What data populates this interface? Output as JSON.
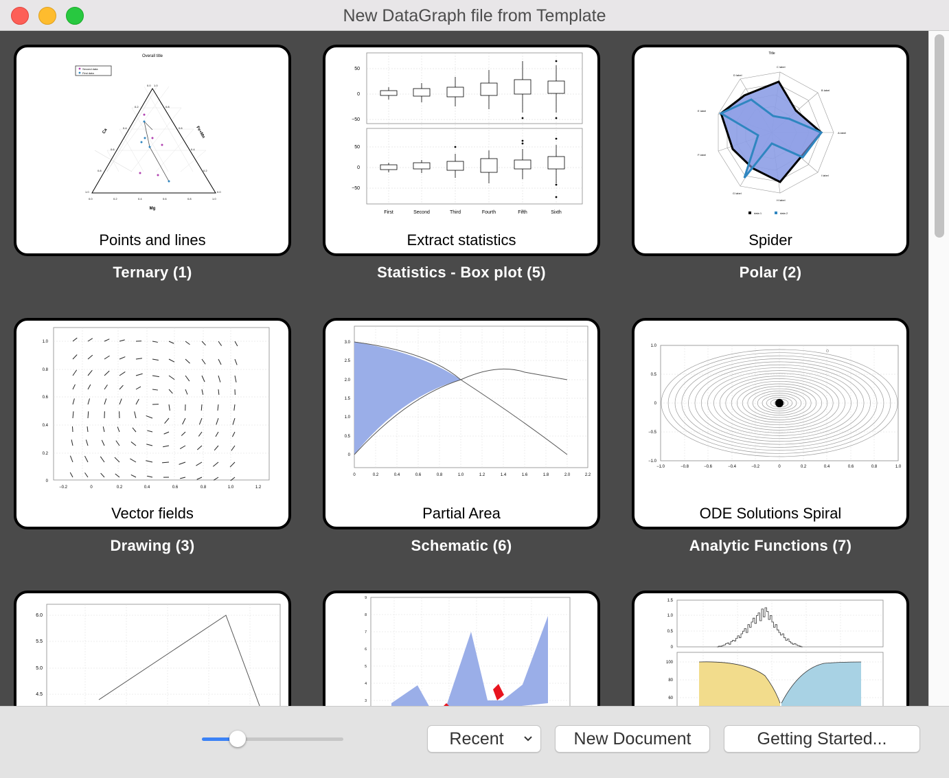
{
  "window": {
    "title": "New DataGraph file from Template"
  },
  "templates": [
    {
      "name": "Points and lines",
      "category": "Ternary (1)",
      "thumbnail": "ternary-plot"
    },
    {
      "name": "Extract statistics",
      "category": "Statistics - Box plot (5)",
      "thumbnail": "box-plot"
    },
    {
      "name": "Spider",
      "category": "Polar (2)",
      "thumbnail": "spider-chart"
    },
    {
      "name": "Vector fields",
      "category": "Drawing (3)",
      "thumbnail": "vector-field"
    },
    {
      "name": "Partial Area",
      "category": "Schematic (6)",
      "thumbnail": "partial-area"
    },
    {
      "name": "ODE Solutions Spiral",
      "category": "Analytic Functions (7)",
      "thumbnail": "spiral"
    },
    {
      "name": "",
      "category": "",
      "thumbnail": "line-plot"
    },
    {
      "name": "",
      "category": "",
      "thumbnail": "filled-area"
    },
    {
      "name": "",
      "category": "",
      "thumbnail": "histogram-and-curves"
    }
  ],
  "thumb_text": {
    "ternary": {
      "title": "Overall title",
      "legend": [
        "Second data",
        "First data"
      ],
      "axis_left": "Ca",
      "axis_right": "Fe+Mn",
      "axis_bottom": "Mg",
      "ticks": [
        "0.0",
        "0.2",
        "0.4",
        "0.6",
        "0.8",
        "1.0"
      ]
    },
    "boxplot": {
      "yticks": [
        "50",
        "0",
        "−50"
      ],
      "categories": [
        "First",
        "Second",
        "Third",
        "Fourth",
        "Fifth",
        "Sixth"
      ]
    },
    "spider": {
      "title": "Title",
      "axes": [
        "A label",
        "B label",
        "C label",
        "D label",
        "E label",
        "F label",
        "G label",
        "H label",
        "I label"
      ],
      "legend": [
        "data 1",
        "data 2"
      ]
    },
    "vector": {
      "yticks": [
        "1.0",
        "0.8",
        "0.6",
        "0.4",
        "0.2",
        "0"
      ],
      "xticks": [
        "−0.2",
        "0",
        "0.2",
        "0.4",
        "0.6",
        "0.8",
        "1.0",
        "1.2"
      ]
    },
    "partial": {
      "yticks": [
        "3.0",
        "2.5",
        "2.0",
        "1.5",
        "1.0",
        "0.5",
        "0"
      ],
      "xticks": [
        "0",
        "0.2",
        "0.4",
        "0.6",
        "0.8",
        "1.0",
        "1.2",
        "1.4",
        "1.6",
        "1.8",
        "2.0",
        "2.2"
      ]
    },
    "spiral": {
      "yticks": [
        "1.0",
        "0.5",
        "0",
        "−0.5",
        "−1.0"
      ],
      "xticks": [
        "−1.0",
        "−0.8",
        "−0.6",
        "−0.4",
        "−0.2",
        "0",
        "0.2",
        "0.4",
        "0.6",
        "0.8",
        "1.0"
      ]
    },
    "line": {
      "yticks": [
        "6.0",
        "5.5",
        "5.0",
        "4.5"
      ]
    },
    "filled": {
      "yticks": [
        "9",
        "8",
        "7",
        "6",
        "5",
        "4",
        "3"
      ]
    },
    "hist": {
      "yticks_top": [
        "1.5",
        "1.0",
        "0.5",
        "0"
      ],
      "yticks_bottom": [
        "100",
        "80",
        "60"
      ]
    }
  },
  "colors": {
    "accent": "#3b82f6",
    "area_fill": "#9aaee8",
    "highlight": "#e8141e",
    "yellow_fill": "#f2dc8c",
    "blue_fill": "#a8d2e4"
  },
  "footer": {
    "slider_value": 0.25,
    "recent_button": "Recent",
    "new_document_button": "New Document",
    "getting_started_button": "Getting Started..."
  }
}
